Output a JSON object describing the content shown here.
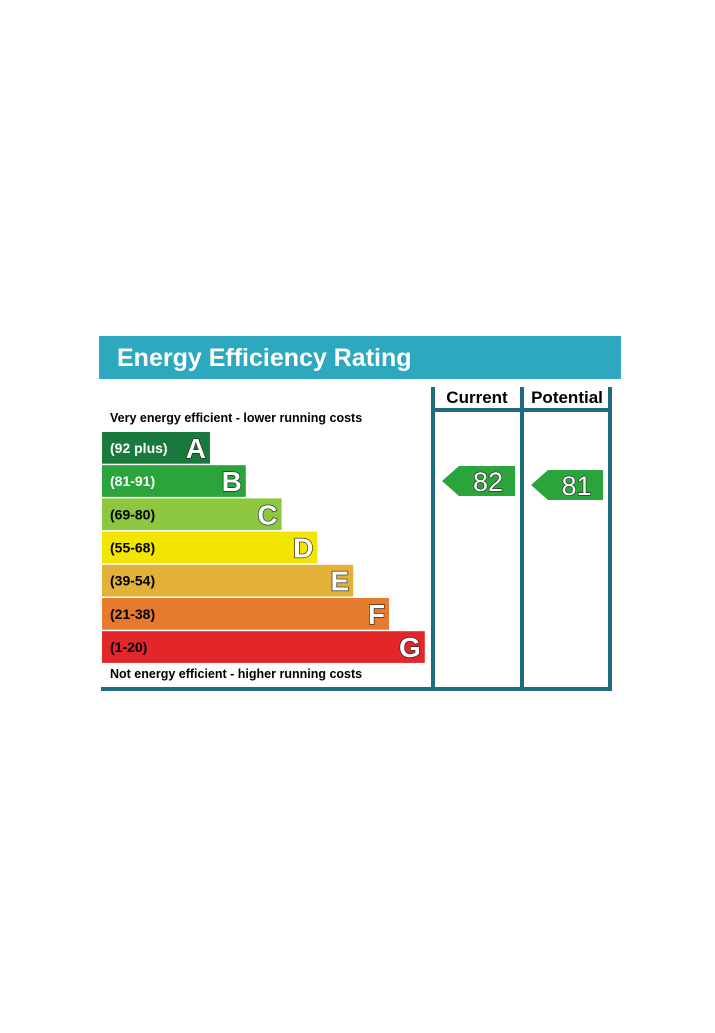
{
  "chart_data": {
    "type": "bar",
    "title": "Energy Efficiency Rating",
    "top_note": "Very energy efficient - lower running costs",
    "bottom_note": "Not energy efficient - higher running costs",
    "columns": [
      "Current",
      "Potential"
    ],
    "bands": [
      {
        "letter": "A",
        "range": "(92 plus)",
        "min": 92,
        "max": 100,
        "color": "#1a7a3e",
        "text_color": "#ffffff"
      },
      {
        "letter": "B",
        "range": "(81-91)",
        "min": 81,
        "max": 91,
        "color": "#2ba53b",
        "text_color": "#ffffff"
      },
      {
        "letter": "C",
        "range": "(69-80)",
        "min": 69,
        "max": 80,
        "color": "#8dc63f",
        "text_color": "#000000"
      },
      {
        "letter": "D",
        "range": "(55-68)",
        "min": 55,
        "max": 68,
        "color": "#f2e600",
        "text_color": "#000000"
      },
      {
        "letter": "E",
        "range": "(39-54)",
        "min": 39,
        "max": 54,
        "color": "#e3b13a",
        "text_color": "#000000"
      },
      {
        "letter": "F",
        "range": "(21-38)",
        "min": 21,
        "max": 38,
        "color": "#e67a2e",
        "text_color": "#000000"
      },
      {
        "letter": "G",
        "range": "(1-20)",
        "min": 1,
        "max": 20,
        "color": "#e2262a",
        "text_color": "#000000"
      }
    ],
    "current": {
      "value": 82,
      "band": "B"
    },
    "potential": {
      "value": 81,
      "band": "B"
    }
  },
  "colors": {
    "title_bar": "#2da8be",
    "frame": "#1f6b80"
  }
}
